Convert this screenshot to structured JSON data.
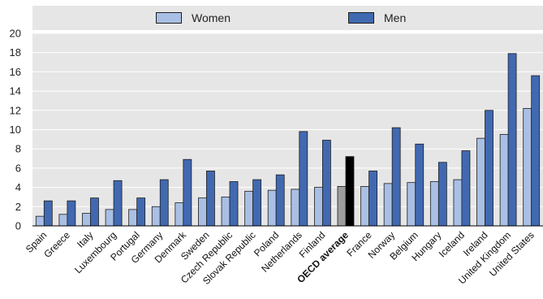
{
  "legend": [
    {
      "label": "Women",
      "color": "#a9bfe4"
    },
    {
      "label": "Men",
      "color": "#4169b1"
    }
  ],
  "chart_data": {
    "type": "bar",
    "ylim": [
      0,
      20
    ],
    "yticks": [
      0,
      2,
      4,
      6,
      8,
      10,
      12,
      14,
      16,
      18,
      20
    ],
    "grid": true,
    "legend_position": "top",
    "categories": [
      "Spain",
      "Greece",
      "Italy",
      "Luxembourg",
      "Portugal",
      "Germany",
      "Denmark",
      "Sweden",
      "Czech Republic",
      "Slovak Republic",
      "Poland",
      "Netherlands",
      "Finland",
      "OECD average",
      "France",
      "Norway",
      "Belgium",
      "Hungary",
      "Iceland",
      "Ireland",
      "United Kingdom",
      "United States"
    ],
    "highlight_category": "OECD average",
    "highlight_color": "#000000",
    "series": [
      {
        "name": "Women",
        "color": "#a9bfe4",
        "values": [
          1.0,
          1.2,
          1.3,
          1.7,
          1.7,
          2.0,
          2.4,
          2.9,
          3.0,
          3.6,
          3.7,
          3.8,
          4.0,
          4.1,
          4.1,
          4.4,
          4.5,
          4.6,
          4.8,
          9.1,
          9.5,
          12.2
        ]
      },
      {
        "name": "Men",
        "color": "#4169b1",
        "values": [
          2.6,
          2.6,
          2.9,
          4.7,
          2.9,
          4.8,
          6.9,
          5.7,
          4.6,
          4.8,
          5.3,
          9.8,
          8.9,
          7.2,
          5.7,
          10.2,
          8.5,
          6.6,
          7.8,
          12.0,
          17.9,
          15.6
        ]
      }
    ]
  }
}
